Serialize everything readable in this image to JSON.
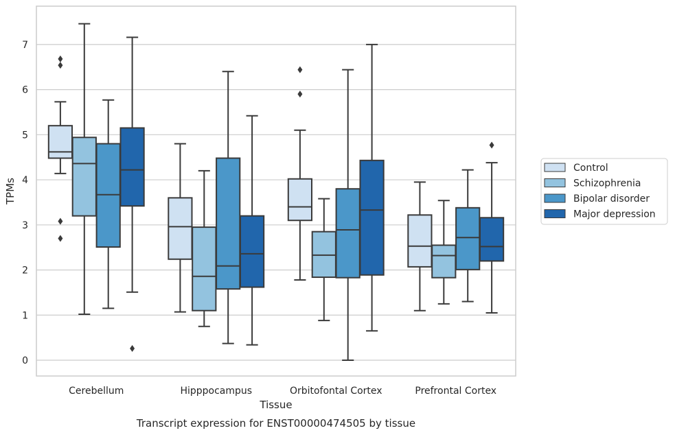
{
  "chart_data": {
    "type": "box",
    "caption": "Transcript expression for ENST00000474505 by tissue",
    "xlabel": "Tissue",
    "ylabel": "TPMs",
    "ylim": [
      -0.35,
      7.85
    ],
    "yticks": [
      0,
      1,
      2,
      3,
      4,
      5,
      6,
      7
    ],
    "grid": true,
    "legend_position": "right",
    "categories": [
      "Cerebellum",
      "Hipppocampus",
      "Orbitofontal Cortex",
      "Prefrontal Cortex"
    ],
    "series": [
      {
        "name": "Control",
        "color": "#cfe1f2",
        "boxes": [
          {
            "whisker_low": 4.14,
            "q1": 4.48,
            "median": 4.62,
            "q3": 5.2,
            "whisker_high": 5.73,
            "outliers": [
              6.68,
              6.54,
              3.08,
              2.7
            ]
          },
          {
            "whisker_low": 1.07,
            "q1": 2.24,
            "median": 2.96,
            "q3": 3.6,
            "whisker_high": 4.8,
            "outliers": []
          },
          {
            "whisker_low": 1.78,
            "q1": 3.1,
            "median": 3.4,
            "q3": 4.02,
            "whisker_high": 5.1,
            "outliers": [
              6.44,
              5.9
            ]
          },
          {
            "whisker_low": 1.1,
            "q1": 2.07,
            "median": 2.53,
            "q3": 3.22,
            "whisker_high": 3.95,
            "outliers": []
          }
        ]
      },
      {
        "name": "Schizophrenia",
        "color": "#93c3df",
        "boxes": [
          {
            "whisker_low": 1.02,
            "q1": 3.2,
            "median": 4.36,
            "q3": 4.94,
            "whisker_high": 7.46,
            "outliers": []
          },
          {
            "whisker_low": 0.75,
            "q1": 1.1,
            "median": 1.86,
            "q3": 2.95,
            "whisker_high": 4.2,
            "outliers": []
          },
          {
            "whisker_low": 0.88,
            "q1": 1.84,
            "median": 2.33,
            "q3": 2.85,
            "whisker_high": 3.58,
            "outliers": []
          },
          {
            "whisker_low": 1.25,
            "q1": 1.83,
            "median": 2.32,
            "q3": 2.55,
            "whisker_high": 3.54,
            "outliers": []
          }
        ]
      },
      {
        "name": "Bipolar disorder",
        "color": "#4b97c9",
        "boxes": [
          {
            "whisker_low": 1.15,
            "q1": 2.51,
            "median": 3.67,
            "q3": 4.8,
            "whisker_high": 5.77,
            "outliers": []
          },
          {
            "whisker_low": 0.37,
            "q1": 1.58,
            "median": 2.09,
            "q3": 4.48,
            "whisker_high": 6.4,
            "outliers": []
          },
          {
            "whisker_low": 0.0,
            "q1": 1.83,
            "median": 2.89,
            "q3": 3.8,
            "whisker_high": 6.44,
            "outliers": []
          },
          {
            "whisker_low": 1.3,
            "q1": 2.01,
            "median": 2.72,
            "q3": 3.38,
            "whisker_high": 4.22,
            "outliers": []
          }
        ]
      },
      {
        "name": "Major depression",
        "color": "#2166ac",
        "boxes": [
          {
            "whisker_low": 1.51,
            "q1": 3.42,
            "median": 4.22,
            "q3": 5.15,
            "whisker_high": 7.16,
            "outliers": [
              0.26
            ]
          },
          {
            "whisker_low": 0.34,
            "q1": 1.62,
            "median": 2.36,
            "q3": 3.2,
            "whisker_high": 5.42,
            "outliers": []
          },
          {
            "whisker_low": 0.65,
            "q1": 1.89,
            "median": 3.33,
            "q3": 4.43,
            "whisker_high": 7.0,
            "outliers": []
          },
          {
            "whisker_low": 1.05,
            "q1": 2.2,
            "median": 2.52,
            "q3": 3.16,
            "whisker_high": 4.38,
            "outliers": [
              4.77
            ]
          }
        ]
      }
    ]
  }
}
